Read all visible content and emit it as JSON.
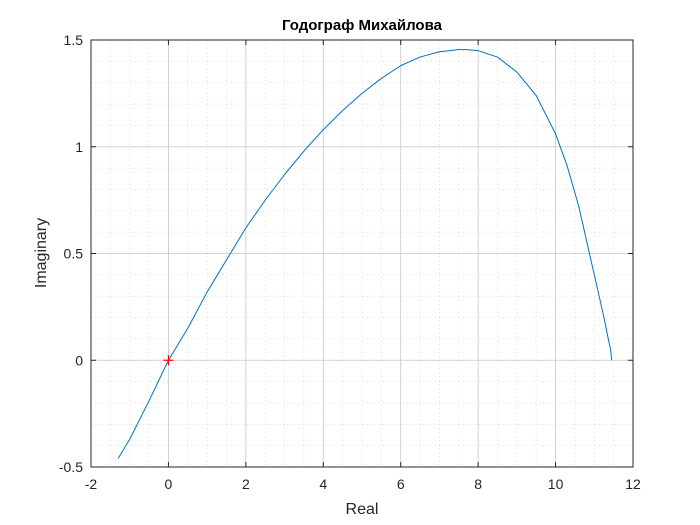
{
  "chart_data": {
    "type": "line",
    "title": "Годограф Михайлова",
    "xlabel": "Real",
    "ylabel": "Imaginary",
    "xlim": [
      -2,
      12
    ],
    "ylim": [
      -0.5,
      1.5
    ],
    "x_ticks": [
      "-2",
      "0",
      "2",
      "4",
      "6",
      "8",
      "10",
      "12"
    ],
    "y_ticks": [
      "-0.5",
      "0",
      "0.5",
      "1",
      "1.5"
    ],
    "x_tick_values": [
      -2,
      0,
      2,
      4,
      6,
      8,
      10,
      12
    ],
    "y_tick_values": [
      -0.5,
      0,
      0.5,
      1,
      1.5
    ],
    "grid": "major and minor",
    "series": [
      {
        "color": "#0072bd",
        "x": [
          -1.3,
          -1.0,
          -0.5,
          0.0,
          0.5,
          1.0,
          1.5,
          2.0,
          2.5,
          3.0,
          3.5,
          4.0,
          4.5,
          5.0,
          5.5,
          6.0,
          6.5,
          7.0,
          7.5,
          7.7,
          8.0,
          8.5,
          9.0,
          9.5,
          10.0,
          10.3,
          10.6,
          10.9,
          11.1,
          11.25,
          11.35,
          11.42,
          11.45
        ],
        "y": [
          -0.46,
          -0.37,
          -0.19,
          0.0,
          0.15,
          0.32,
          0.47,
          0.62,
          0.75,
          0.87,
          0.98,
          1.08,
          1.17,
          1.25,
          1.32,
          1.38,
          1.42,
          1.445,
          1.455,
          1.455,
          1.45,
          1.42,
          1.35,
          1.24,
          1.06,
          0.91,
          0.72,
          0.48,
          0.32,
          0.2,
          0.11,
          0.05,
          0.0
        ]
      }
    ],
    "marker": {
      "x": 0,
      "y": 0,
      "symbol": "+",
      "color": "#ff0000"
    }
  }
}
